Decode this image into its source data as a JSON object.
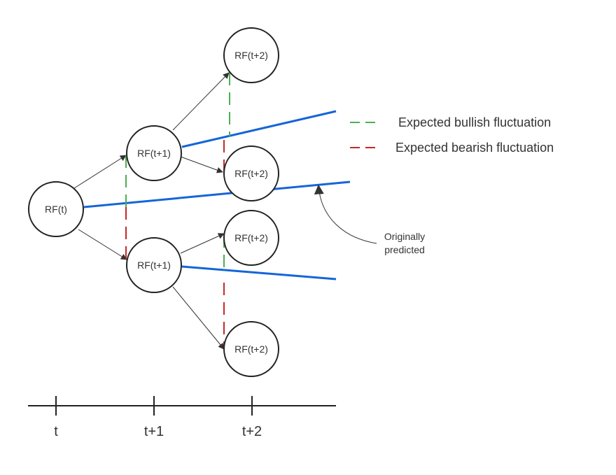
{
  "nodes": {
    "root": "RF(t)",
    "t1_up": "RF(t+1)",
    "t1_down": "RF(t+1)",
    "t2_uu": "RF(t+2)",
    "t2_ud": "RF(t+2)",
    "t2_du": "RF(t+2)",
    "t2_dd": "RF(t+2)"
  },
  "legend": {
    "bullish": {
      "label": "Expected bullish fluctuation",
      "color": "#4caf50"
    },
    "bearish": {
      "label": "Expected bearish fluctuation",
      "color": "#c62828"
    }
  },
  "annotation": {
    "line1": "Originally",
    "line2": "predicted"
  },
  "trend_color": "#1565d8",
  "axis": {
    "ticks": [
      "t",
      "t+1",
      "t+2"
    ]
  }
}
